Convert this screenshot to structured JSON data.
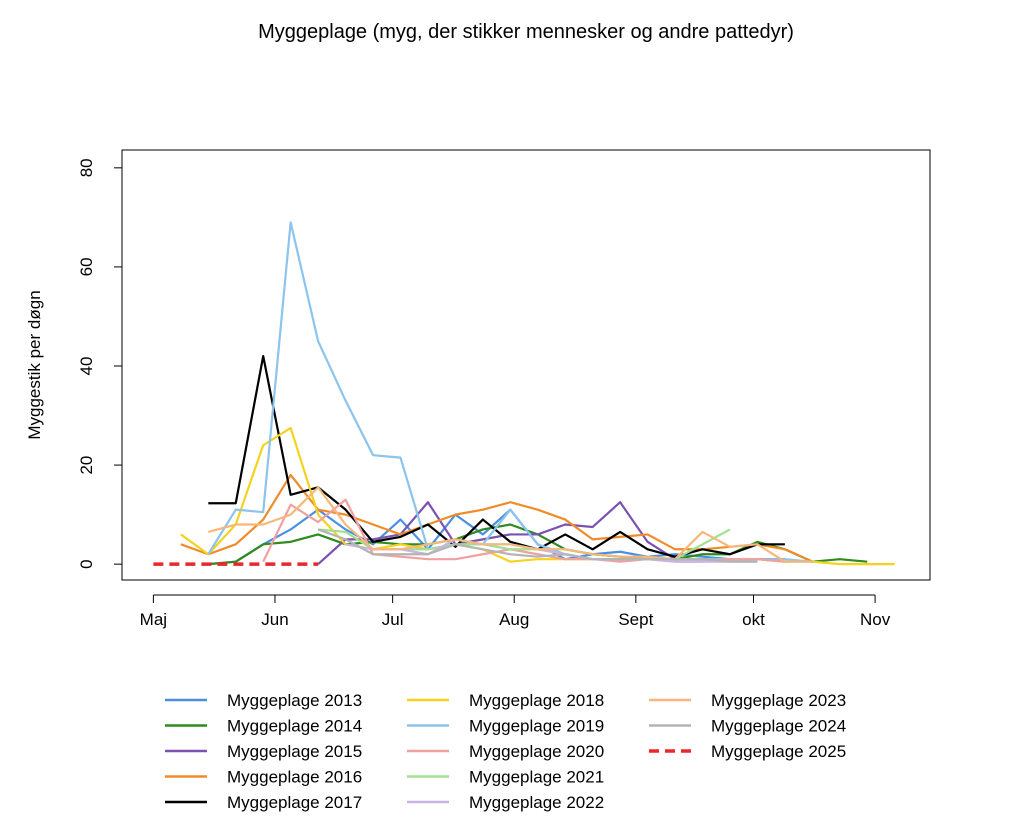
{
  "chart_data": {
    "type": "line",
    "title": "Myggeplage (myg, der stikker mennesker og andre pattedyr)",
    "y_label": "Myggestik per døgn",
    "x": [
      121,
      128,
      135,
      142,
      149,
      156,
      163,
      170,
      177,
      184,
      191,
      198,
      205,
      212,
      219,
      226,
      233,
      240,
      247,
      254,
      261,
      268,
      275,
      282,
      289,
      296,
      303,
      310
    ],
    "xlim": [
      113,
      319
    ],
    "xticks": [
      {
        "value": 121,
        "label": "Maj"
      },
      {
        "value": 152,
        "label": "Jun"
      },
      {
        "value": 182,
        "label": "Jul"
      },
      {
        "value": 213,
        "label": "Aug"
      },
      {
        "value": 244,
        "label": "Sept"
      },
      {
        "value": 274,
        "label": "okt"
      },
      {
        "value": 305,
        "label": "Nov"
      }
    ],
    "ylim": [
      -3.2,
      83.6
    ],
    "yticks": [
      0,
      20,
      40,
      60,
      80
    ],
    "legend": "bottom",
    "series": [
      {
        "name": "Myggeplage 2013",
        "color": "#4a90e2",
        "values": [
          null,
          null,
          0,
          0.5,
          4,
          7,
          11,
          7,
          4,
          9,
          3,
          10,
          6,
          11,
          4,
          1,
          2,
          2.5,
          1.5,
          2,
          1.5,
          1,
          1,
          0.5,
          null,
          null,
          null,
          null
        ]
      },
      {
        "name": "Myggeplage 2014",
        "color": "#2e8b1e",
        "values": [
          null,
          null,
          0,
          0.5,
          4,
          4.5,
          6,
          4,
          4.5,
          4,
          4,
          5,
          7,
          8,
          6,
          3,
          2,
          1.5,
          1,
          1,
          2,
          2,
          4.5,
          3,
          0.5,
          1,
          0.5,
          null
        ]
      },
      {
        "name": "Myggeplage 2015",
        "color": "#7b52b0",
        "values": [
          null,
          null,
          null,
          null,
          null,
          null,
          0,
          5,
          5,
          6,
          12.5,
          4,
          5,
          6,
          6,
          8,
          7.5,
          12.5,
          4.5,
          1,
          1,
          1,
          1,
          1,
          null,
          null,
          null,
          null
        ]
      },
      {
        "name": "Myggeplage 2016",
        "color": "#f08c28",
        "values": [
          null,
          4,
          2,
          4,
          9,
          18,
          11,
          10,
          8,
          6,
          8,
          10,
          11,
          12.5,
          11,
          9,
          5,
          5.5,
          6,
          3,
          3,
          3.5,
          4,
          3,
          0.5,
          null,
          null,
          null
        ]
      },
      {
        "name": "Myggeplage 2017",
        "color": "#000000",
        "values": [
          null,
          null,
          12.3,
          12.3,
          42,
          14,
          15.5,
          11,
          4.5,
          5.5,
          8,
          3.5,
          9,
          4.5,
          3,
          6,
          3,
          6.5,
          3,
          1.5,
          3,
          2,
          4,
          4,
          null,
          null,
          null,
          null
        ]
      },
      {
        "name": "Myggeplage 2018",
        "color": "#f5d21e",
        "values": [
          null,
          6,
          2,
          8,
          24,
          27.5,
          10,
          4,
          3,
          4,
          3,
          4,
          3,
          0.5,
          1,
          1,
          1,
          1,
          1,
          1,
          1,
          1,
          1,
          0.5,
          0.5,
          0,
          0,
          0
        ]
      },
      {
        "name": "Myggeplage 2019",
        "color": "#8cc4ec",
        "values": [
          null,
          null,
          2,
          11,
          10.5,
          69,
          45,
          33,
          22,
          21.5,
          3,
          4,
          4,
          11,
          4,
          2,
          1,
          1,
          1,
          1,
          1,
          1,
          1,
          1,
          0.5,
          null,
          null,
          null
        ]
      },
      {
        "name": "Myggeplage 2020",
        "color": "#f0a0a0",
        "values": [
          null,
          null,
          null,
          null,
          0.5,
          12,
          8.5,
          13,
          2,
          1.5,
          1,
          1,
          2,
          3,
          2,
          1,
          1,
          0.5,
          1,
          0.5,
          0.5,
          1,
          1,
          0.5,
          null,
          null,
          null,
          null
        ]
      },
      {
        "name": "Myggeplage 2021",
        "color": "#a0e090",
        "values": [
          null,
          null,
          null,
          null,
          null,
          null,
          7,
          6.5,
          3,
          3,
          3,
          4,
          4,
          3,
          3,
          2,
          1,
          1,
          1,
          1,
          4,
          7,
          null,
          null,
          null,
          null,
          null,
          null
        ]
      },
      {
        "name": "Myggeplage 2022",
        "color": "#c8b4e6",
        "values": [
          null,
          null,
          null,
          null,
          null,
          null,
          null,
          4,
          3,
          3,
          2,
          5,
          4,
          4,
          3,
          2,
          1,
          1,
          1,
          0.5,
          0.5,
          0.5,
          0.5,
          null,
          null,
          null,
          null,
          null
        ]
      },
      {
        "name": "Myggeplage 2023",
        "color": "#f5b87a",
        "values": [
          null,
          null,
          6.5,
          8,
          8,
          10,
          15.5,
          8,
          3,
          3,
          4,
          5,
          4,
          4,
          3,
          3,
          2,
          1.5,
          1.5,
          1,
          6.5,
          3.5,
          4,
          0.5,
          0.5,
          null,
          null,
          null
        ]
      },
      {
        "name": "Myggeplage 2024",
        "color": "#b4b4b4",
        "values": [
          null,
          null,
          null,
          null,
          null,
          null,
          7,
          5,
          2,
          2,
          2,
          4,
          3,
          2,
          1.5,
          2,
          1,
          1,
          1,
          1,
          1,
          0.5,
          0.5,
          null,
          null,
          null,
          null,
          null
        ]
      },
      {
        "name": "Myggeplage 2025",
        "color": "#e8282a",
        "linestyle": "dashed",
        "values": [
          0,
          0,
          0,
          0,
          0,
          0,
          0,
          null,
          null,
          null,
          null,
          null,
          null,
          null,
          null,
          null,
          null,
          null,
          null,
          null,
          null,
          null,
          null,
          null,
          null,
          null,
          null,
          null
        ]
      }
    ]
  }
}
